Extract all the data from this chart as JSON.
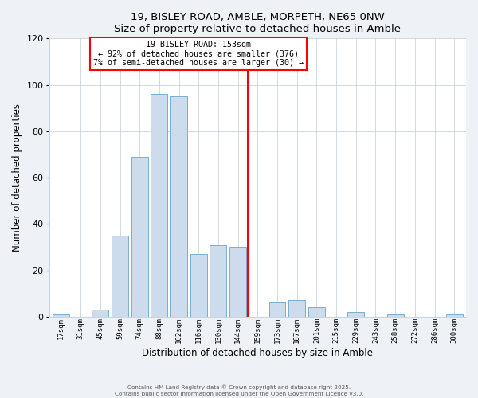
{
  "title": "19, BISLEY ROAD, AMBLE, MORPETH, NE65 0NW",
  "subtitle": "Size of property relative to detached houses in Amble",
  "xlabel": "Distribution of detached houses by size in Amble",
  "ylabel": "Number of detached properties",
  "bar_labels": [
    "17sqm",
    "31sqm",
    "45sqm",
    "59sqm",
    "74sqm",
    "88sqm",
    "102sqm",
    "116sqm",
    "130sqm",
    "144sqm",
    "159sqm",
    "173sqm",
    "187sqm",
    "201sqm",
    "215sqm",
    "229sqm",
    "243sqm",
    "258sqm",
    "272sqm",
    "286sqm",
    "300sqm"
  ],
  "bar_heights": [
    1,
    0,
    3,
    35,
    69,
    96,
    95,
    27,
    31,
    30,
    0,
    6,
    7,
    4,
    0,
    2,
    0,
    1,
    0,
    0,
    1
  ],
  "bar_color": "#ccdcec",
  "bar_edge_color": "#7aaed0",
  "reference_line_index": 10.0,
  "reference_line_label": "19 BISLEY ROAD: 153sqm",
  "annotation_line1": "← 92% of detached houses are smaller (376)",
  "annotation_line2": "7% of semi-detached houses are larger (30) →",
  "ylim": [
    0,
    120
  ],
  "yticks": [
    0,
    20,
    40,
    60,
    80,
    100,
    120
  ],
  "footnote1": "Contains HM Land Registry data © Crown copyright and database right 2025.",
  "footnote2": "Contains public sector information licensed under the Open Government Licence v3.0.",
  "bg_color": "#eef2f7",
  "plot_bg_color": "#ffffff",
  "grid_color": "#c8d4e0"
}
